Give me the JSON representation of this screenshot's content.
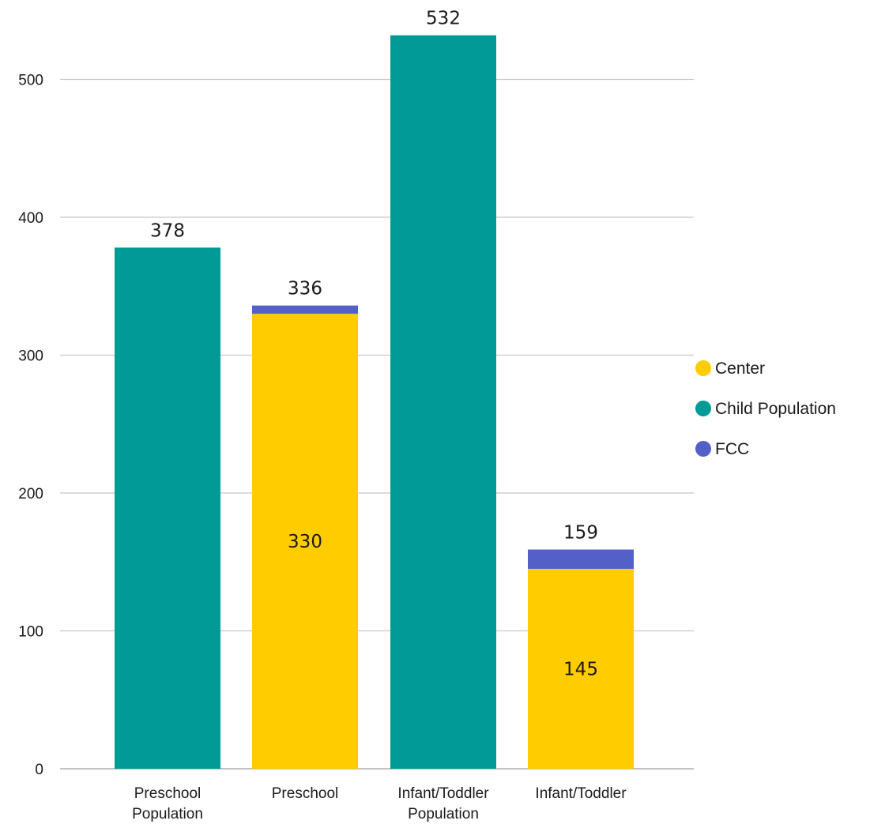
{
  "chart_data": {
    "type": "bar",
    "stacked": true,
    "title": "",
    "xlabel": "",
    "ylabel": "",
    "ylim": [
      0,
      532
    ],
    "yticks": [
      0,
      100,
      200,
      300,
      400,
      500
    ],
    "grid": true,
    "legend_position": "right",
    "categories": [
      [
        "Preschool",
        "Population"
      ],
      [
        "Preschool"
      ],
      [
        "Infant/Toddler",
        "Population"
      ],
      [
        "Infant/Toddler"
      ]
    ],
    "series": [
      {
        "name": "Center",
        "color": "#FFCC00",
        "values": [
          0,
          330,
          0,
          145
        ]
      },
      {
        "name": "Child Population",
        "color": "#009B96",
        "values": [
          378,
          0,
          532,
          0
        ]
      },
      {
        "name": "FCC",
        "color": "#5360C8",
        "values": [
          0,
          6,
          0,
          14
        ]
      }
    ],
    "totals": [
      "378",
      "336",
      "532",
      "159"
    ],
    "inner_labels": [
      {
        "category_index": 1,
        "series": "Center",
        "text": "330"
      },
      {
        "category_index": 3,
        "series": "Center",
        "text": "145"
      }
    ]
  }
}
